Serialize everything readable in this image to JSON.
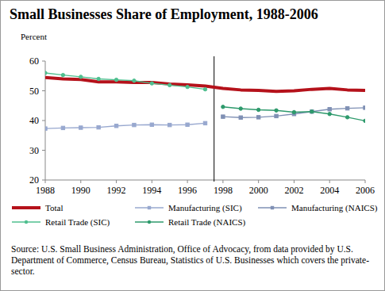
{
  "chart_data": {
    "type": "line",
    "title": "Small Businesses Share of Employment, 1988-2006",
    "y_label": "Percent",
    "source": "Source: U.S. Small Business Administration, Office of Advocacy, from data provided by U.S. Department of Commerce, Census Bureau, Statistics of U.S. Businesses which covers the private-sector.",
    "x": [
      1988,
      1989,
      1990,
      1991,
      1992,
      1993,
      1994,
      1995,
      1996,
      1997,
      1998,
      1999,
      2000,
      2001,
      2002,
      2003,
      2004,
      2005,
      2006
    ],
    "series": [
      {
        "name": "Total",
        "color": "#b5121b",
        "marker": "none",
        "line_style": "thick",
        "values": [
          54.5,
          54.0,
          53.8,
          53.0,
          53.0,
          52.8,
          52.8,
          52.3,
          52.0,
          51.6,
          50.8,
          50.3,
          50.1,
          49.8,
          50.0,
          50.5,
          50.8,
          50.3,
          50.1
        ]
      },
      {
        "name": "Manufacturing (SIC)",
        "color": "#98a8cf",
        "marker": "square",
        "line_style": "solid",
        "values": [
          37.3,
          37.5,
          37.6,
          37.7,
          38.2,
          38.5,
          38.6,
          38.5,
          38.6,
          39.1,
          null,
          null,
          null,
          null,
          null,
          null,
          null,
          null,
          null
        ]
      },
      {
        "name": "Manufacturing (NAICS)",
        "color": "#7f90b4",
        "marker": "square",
        "line_style": "solid",
        "values": [
          null,
          null,
          null,
          null,
          null,
          null,
          null,
          null,
          null,
          null,
          41.3,
          41.0,
          41.1,
          41.5,
          42.2,
          43.0,
          43.8,
          44.1,
          44.3
        ]
      },
      {
        "name": "Retail Trade (SIC)",
        "color": "#4fbf8f",
        "marker": "circle",
        "line_style": "solid",
        "values": [
          56.0,
          55.3,
          54.7,
          54.0,
          53.7,
          53.4,
          52.5,
          51.9,
          51.3,
          50.5,
          null,
          null,
          null,
          null,
          null,
          null,
          null,
          null,
          null
        ]
      },
      {
        "name": "Retail Trade (NAICS)",
        "color": "#2e9a6c",
        "marker": "circle",
        "line_style": "solid",
        "values": [
          null,
          null,
          null,
          null,
          null,
          null,
          null,
          null,
          null,
          null,
          44.6,
          44.0,
          43.6,
          43.4,
          42.8,
          43.0,
          42.2,
          41.1,
          39.9
        ]
      }
    ],
    "xlim": [
      1988,
      2006
    ],
    "xticks": [
      1988,
      1990,
      1992,
      1994,
      1996,
      1998,
      2000,
      2002,
      2004,
      2006
    ],
    "ylim": [
      20,
      60
    ],
    "yticks": [
      20,
      30,
      40,
      50,
      60
    ],
    "grid": false,
    "legend": "bottom"
  }
}
